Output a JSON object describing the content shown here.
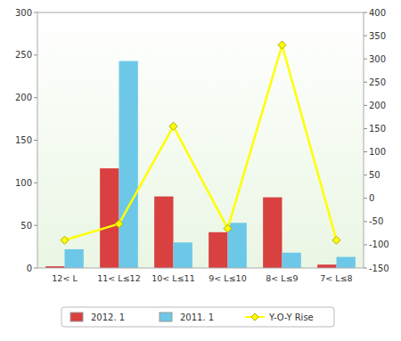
{
  "chart_data": {
    "type": "bar",
    "categories": [
      "12< L",
      "11< L≤12",
      "10< L≤11",
      "9< L≤10",
      "8< L≤9",
      "7< L≤8"
    ],
    "series": [
      {
        "name": "2012. 1",
        "color": "#d94040",
        "values": [
          2,
          117,
          84,
          42,
          83,
          4
        ]
      },
      {
        "name": "2011. 1",
        "color": "#6dc8e8",
        "values": [
          22,
          243,
          30,
          53,
          18,
          13
        ]
      },
      {
        "name": "Y-O-Y Rise",
        "type": "line",
        "color": "#ffff00",
        "marker": "diamond",
        "axis": "y2",
        "values": [
          -90,
          -55,
          155,
          -65,
          330,
          -90
        ]
      }
    ],
    "ylim": [
      0,
      300
    ],
    "yticks": [
      0,
      50,
      100,
      150,
      200,
      250,
      300
    ],
    "y2lim": [
      -150,
      400
    ],
    "y2ticks": [
      -150,
      -100,
      -50,
      0,
      50,
      100,
      150,
      200,
      250,
      300,
      350,
      400
    ],
    "legend": "bottom"
  }
}
